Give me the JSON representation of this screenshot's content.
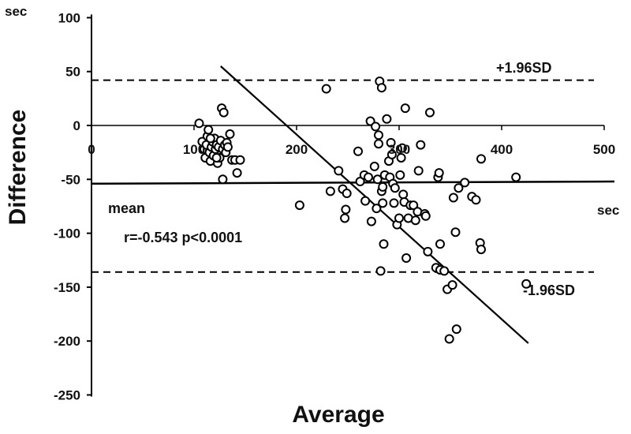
{
  "chart_data": {
    "type": "scatter",
    "title": "",
    "xlabel": "Average",
    "ylabel": "Difference",
    "x_unit": "sec",
    "y_unit": "sec",
    "xlim": [
      0,
      500
    ],
    "ylim": [
      -250,
      100
    ],
    "x_ticks": [
      "0",
      "100",
      "200",
      "300",
      "400",
      "500"
    ],
    "y_ticks": [
      "100",
      "50",
      "0",
      "-50",
      "-100",
      "-150",
      "-200",
      "-250"
    ],
    "grid": false,
    "mean_difference": -54,
    "upper_loa": 42,
    "lower_loa": -136,
    "labels": {
      "mean": "mean",
      "upper": "+1.96SD",
      "lower": "-1.96SD",
      "correlation": "r=-0.543 p<0.0001"
    },
    "regression_line": {
      "x": [
        126,
        426
      ],
      "y": [
        55,
        -202
      ]
    },
    "points": [
      {
        "x": 105,
        "y": 2
      },
      {
        "x": 108,
        "y": -15
      },
      {
        "x": 110,
        "y": -22
      },
      {
        "x": 112,
        "y": -18
      },
      {
        "x": 111,
        "y": -30
      },
      {
        "x": 113,
        "y": -10
      },
      {
        "x": 114,
        "y": -4
      },
      {
        "x": 115,
        "y": -25
      },
      {
        "x": 116,
        "y": -33
      },
      {
        "x": 117,
        "y": -20
      },
      {
        "x": 118,
        "y": -15
      },
      {
        "x": 119,
        "y": -28
      },
      {
        "x": 120,
        "y": -12
      },
      {
        "x": 121,
        "y": -22
      },
      {
        "x": 122,
        "y": -18
      },
      {
        "x": 123,
        "y": -35
      },
      {
        "x": 124,
        "y": -20
      },
      {
        "x": 125,
        "y": -30
      },
      {
        "x": 126,
        "y": -14
      },
      {
        "x": 127,
        "y": 16
      },
      {
        "x": 128,
        "y": -22
      },
      {
        "x": 129,
        "y": 12
      },
      {
        "x": 130,
        "y": -18
      },
      {
        "x": 131,
        "y": -25
      },
      {
        "x": 132,
        "y": -16
      },
      {
        "x": 133,
        "y": -20
      },
      {
        "x": 135,
        "y": -8
      },
      {
        "x": 137,
        "y": -32
      },
      {
        "x": 140,
        "y": -32
      },
      {
        "x": 142,
        "y": -44
      },
      {
        "x": 145,
        "y": -32
      },
      {
        "x": 128,
        "y": -50
      },
      {
        "x": 122,
        "y": -30
      },
      {
        "x": 116,
        "y": -12
      },
      {
        "x": 203,
        "y": -74
      },
      {
        "x": 229,
        "y": 34
      },
      {
        "x": 233,
        "y": -61
      },
      {
        "x": 241,
        "y": -42
      },
      {
        "x": 245,
        "y": -59
      },
      {
        "x": 247,
        "y": -86
      },
      {
        "x": 248,
        "y": -78
      },
      {
        "x": 249,
        "y": -63
      },
      {
        "x": 260,
        "y": -24
      },
      {
        "x": 262,
        "y": -52
      },
      {
        "x": 266,
        "y": -46
      },
      {
        "x": 267,
        "y": -70
      },
      {
        "x": 270,
        "y": -48
      },
      {
        "x": 272,
        "y": 4
      },
      {
        "x": 273,
        "y": -89
      },
      {
        "x": 276,
        "y": -38
      },
      {
        "x": 277,
        "y": -1
      },
      {
        "x": 278,
        "y": -77
      },
      {
        "x": 279,
        "y": -50
      },
      {
        "x": 280,
        "y": -17
      },
      {
        "x": 280,
        "y": -9
      },
      {
        "x": 281,
        "y": 41
      },
      {
        "x": 282,
        "y": -135
      },
      {
        "x": 283,
        "y": 35
      },
      {
        "x": 283,
        "y": -61
      },
      {
        "x": 284,
        "y": -57
      },
      {
        "x": 284,
        "y": -72
      },
      {
        "x": 285,
        "y": -110
      },
      {
        "x": 286,
        "y": -46
      },
      {
        "x": 288,
        "y": 6
      },
      {
        "x": 290,
        "y": -33
      },
      {
        "x": 291,
        "y": -48
      },
      {
        "x": 292,
        "y": -16
      },
      {
        "x": 293,
        "y": -27
      },
      {
        "x": 294,
        "y": -54
      },
      {
        "x": 295,
        "y": -72
      },
      {
        "x": 296,
        "y": -58
      },
      {
        "x": 298,
        "y": -92
      },
      {
        "x": 300,
        "y": -86
      },
      {
        "x": 301,
        "y": -46
      },
      {
        "x": 302,
        "y": -30
      },
      {
        "x": 303,
        "y": -21
      },
      {
        "x": 304,
        "y": -64
      },
      {
        "x": 305,
        "y": -71
      },
      {
        "x": 306,
        "y": 16
      },
      {
        "x": 307,
        "y": -123
      },
      {
        "x": 309,
        "y": -86
      },
      {
        "x": 311,
        "y": -74
      },
      {
        "x": 314,
        "y": -74
      },
      {
        "x": 316,
        "y": -88
      },
      {
        "x": 318,
        "y": -80
      },
      {
        "x": 319,
        "y": -42
      },
      {
        "x": 321,
        "y": -18
      },
      {
        "x": 325,
        "y": -82
      },
      {
        "x": 326,
        "y": -84
      },
      {
        "x": 328,
        "y": -117
      },
      {
        "x": 330,
        "y": 12
      },
      {
        "x": 336,
        "y": -132
      },
      {
        "x": 338,
        "y": -48
      },
      {
        "x": 339,
        "y": -44
      },
      {
        "x": 340,
        "y": -134
      },
      {
        "x": 340,
        "y": -110
      },
      {
        "x": 344,
        "y": -135
      },
      {
        "x": 347,
        "y": -152
      },
      {
        "x": 349,
        "y": -198
      },
      {
        "x": 352,
        "y": -148
      },
      {
        "x": 353,
        "y": -67
      },
      {
        "x": 355,
        "y": -99
      },
      {
        "x": 356,
        "y": -189
      },
      {
        "x": 358,
        "y": -58
      },
      {
        "x": 364,
        "y": -53
      },
      {
        "x": 371,
        "y": -66
      },
      {
        "x": 375,
        "y": -69
      },
      {
        "x": 379,
        "y": -109
      },
      {
        "x": 380,
        "y": -115
      },
      {
        "x": 380,
        "y": -31
      },
      {
        "x": 414,
        "y": -48
      },
      {
        "x": 424,
        "y": -147
      }
    ]
  }
}
